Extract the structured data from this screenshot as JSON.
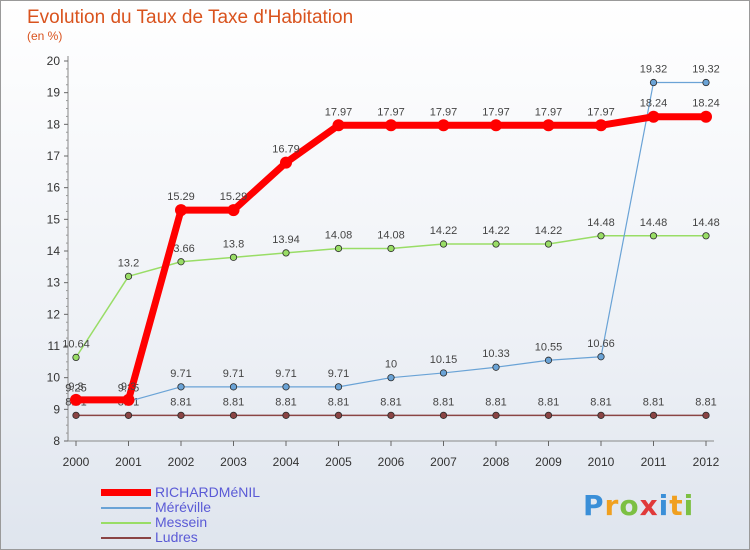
{
  "chart_data": {
    "type": "line",
    "title": "Evolution du Taux de Taxe d'Habitation",
    "unit_label": "(en %)",
    "x": [
      "2000",
      "2001",
      "2002",
      "2003",
      "2004",
      "2005",
      "2006",
      "2007",
      "2008",
      "2009",
      "2010",
      "2011",
      "2012"
    ],
    "ylim": [
      8,
      20
    ],
    "yticks": [
      8,
      9,
      10,
      11,
      12,
      13,
      14,
      15,
      16,
      17,
      18,
      19,
      20
    ],
    "grid": false,
    "legend_position": "bottom-left",
    "series": [
      {
        "name": "RICHARDMéNIL",
        "color": "#ff0000",
        "width": 7,
        "marker": 6,
        "labels": [
          "9.3",
          "9.3",
          "15.29",
          "15.29",
          "16.79",
          "17.97",
          "17.97",
          "17.97",
          "17.97",
          "17.97",
          "17.97",
          "18.24",
          "18.24"
        ],
        "values": [
          9.3,
          9.3,
          15.29,
          15.29,
          16.79,
          17.97,
          17.97,
          17.97,
          17.97,
          17.97,
          17.97,
          18.24,
          18.24
        ]
      },
      {
        "name": "Méréville",
        "color": "#6aa3d6",
        "width": 1.2,
        "marker": 3.2,
        "labels": [
          "9.25",
          "9.25",
          "9.71",
          "9.71",
          "9.71",
          "9.71",
          "10",
          "10.15",
          "10.33",
          "10.55",
          "10.66",
          "19.32",
          "19.32"
        ],
        "values": [
          9.25,
          9.25,
          9.71,
          9.71,
          9.71,
          9.71,
          10,
          10.15,
          10.33,
          10.55,
          10.66,
          19.32,
          19.32
        ]
      },
      {
        "name": "Messein",
        "color": "#99dd66",
        "width": 1.5,
        "marker": 3.2,
        "labels": [
          "10.64",
          "13.2",
          "13.66",
          "13.8",
          "13.94",
          "14.08",
          "14.08",
          "14.22",
          "14.22",
          "14.22",
          "14.48",
          "14.48",
          "14.48"
        ],
        "values": [
          10.64,
          13.2,
          13.66,
          13.8,
          13.94,
          14.08,
          14.08,
          14.22,
          14.22,
          14.22,
          14.48,
          14.48,
          14.48
        ]
      },
      {
        "name": "Ludres",
        "color": "#8a4444",
        "width": 1.5,
        "marker": 3.2,
        "labels": [
          "8.81",
          "8.81",
          "8.81",
          "8.81",
          "8.81",
          "8.81",
          "8.81",
          "8.81",
          "8.81",
          "8.81",
          "8.81",
          "8.81",
          "8.81"
        ],
        "values": [
          8.81,
          8.81,
          8.81,
          8.81,
          8.81,
          8.81,
          8.81,
          8.81,
          8.81,
          8.81,
          8.81,
          8.81,
          8.81
        ]
      }
    ]
  },
  "logo": {
    "letters": [
      "P",
      "r",
      "o",
      "x",
      "i",
      "t",
      "i"
    ],
    "colors": [
      "#3a8fd8",
      "#f0a020",
      "#7cc043",
      "#e03a3a",
      "#3a8fd8",
      "#f0a020",
      "#7cc043"
    ]
  }
}
